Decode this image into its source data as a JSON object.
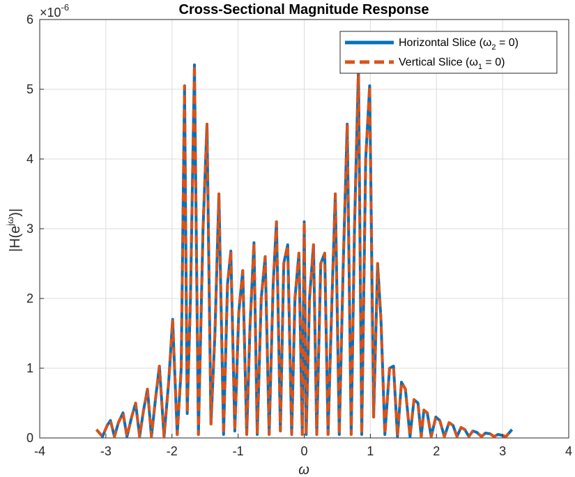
{
  "chart_data": {
    "type": "line",
    "title": "Cross-Sectional Magnitude Response",
    "xlabel": "ω",
    "ylabel": "|H(e^{jω})|",
    "xlim": [
      -4,
      4
    ],
    "ylim": [
      0,
      6
    ],
    "y_scale_exponent": "×10^-6",
    "x_ticks": [
      "-4",
      "-3",
      "-2",
      "-1",
      "0",
      "1",
      "2",
      "3",
      "4"
    ],
    "y_ticks": [
      "0",
      "1",
      "2",
      "3",
      "4",
      "5",
      "6"
    ],
    "grid": true,
    "legend_position": "top-right",
    "series": [
      {
        "name": "Horizontal Slice (ω2 = 0)",
        "color": "#0072BD",
        "style": "solid",
        "x": [
          -3.1416,
          -3.05,
          -2.98,
          -2.93,
          -2.87,
          -2.81,
          -2.74,
          -2.68,
          -2.61,
          -2.55,
          -2.49,
          -2.43,
          -2.37,
          -2.31,
          -2.25,
          -2.19,
          -2.12,
          -2.05,
          -1.99,
          -1.92,
          -1.86,
          -1.81,
          -1.77,
          -1.72,
          -1.66,
          -1.6,
          -1.53,
          -1.47,
          -1.41,
          -1.35,
          -1.29,
          -1.22,
          -1.16,
          -1.11,
          -1.05,
          -0.99,
          -0.93,
          -0.87,
          -0.82,
          -0.76,
          -0.71,
          -0.65,
          -0.59,
          -0.53,
          -0.47,
          -0.42,
          -0.36,
          -0.31,
          -0.25,
          -0.19,
          -0.14,
          -0.08,
          -0.03,
          0.0,
          0.03,
          0.08,
          0.14,
          0.19,
          0.25,
          0.31,
          0.36,
          0.42,
          0.47,
          0.53,
          0.59,
          0.65,
          0.71,
          0.76,
          0.82,
          0.87,
          0.93,
          0.99,
          1.05,
          1.11,
          1.16,
          1.22,
          1.29,
          1.35,
          1.41,
          1.47,
          1.53,
          1.6,
          1.66,
          1.72,
          1.77,
          1.81,
          1.86,
          1.92,
          1.99,
          2.05,
          2.12,
          2.19,
          2.25,
          2.31,
          2.37,
          2.43,
          2.49,
          2.55,
          2.61,
          2.68,
          2.74,
          2.81,
          2.87,
          2.93,
          2.98,
          3.05,
          3.1416
        ],
        "y": [
          0.12,
          0.02,
          0.18,
          0.25,
          0.02,
          0.22,
          0.36,
          0.02,
          0.3,
          0.5,
          0.02,
          0.4,
          0.7,
          0.02,
          0.55,
          1.03,
          0.02,
          0.8,
          1.7,
          0.05,
          1.0,
          5.05,
          0.35,
          2.0,
          5.35,
          0.05,
          3.0,
          4.5,
          0.2,
          1.5,
          3.5,
          0.05,
          2.2,
          2.68,
          0.1,
          1.8,
          2.4,
          0.05,
          1.6,
          2.8,
          0.05,
          2.0,
          2.6,
          0.05,
          2.2,
          3.1,
          0.1,
          2.5,
          2.77,
          0.05,
          2.0,
          2.65,
          0.05,
          3.1,
          0.05,
          2.0,
          2.77,
          0.05,
          2.5,
          2.65,
          0.05,
          2.0,
          3.5,
          0.05,
          2.5,
          4.5,
          0.05,
          3.0,
          5.3,
          0.05,
          4.0,
          5.05,
          0.3,
          2.5,
          1.7,
          0.05,
          1.0,
          1.03,
          0.02,
          0.8,
          0.7,
          0.02,
          0.55,
          0.5,
          0.02,
          0.4,
          0.36,
          0.02,
          0.3,
          0.25,
          0.02,
          0.22,
          0.18,
          0.02,
          0.15,
          0.12,
          0.02,
          0.1,
          0.08,
          0.02,
          0.07,
          0.06,
          0.02,
          0.05,
          0.04,
          0.02,
          0.12
        ]
      },
      {
        "name": "Vertical Slice (ω1 = 0)",
        "color": "#D95319",
        "style": "dashed"
      }
    ]
  },
  "legend": {
    "entries": [
      {
        "base": "Horizontal Slice (ω",
        "sub": "2",
        "rest": " = 0)"
      },
      {
        "base": "Vertical Slice (ω",
        "sub": "1",
        "rest": " = 0)"
      }
    ]
  }
}
